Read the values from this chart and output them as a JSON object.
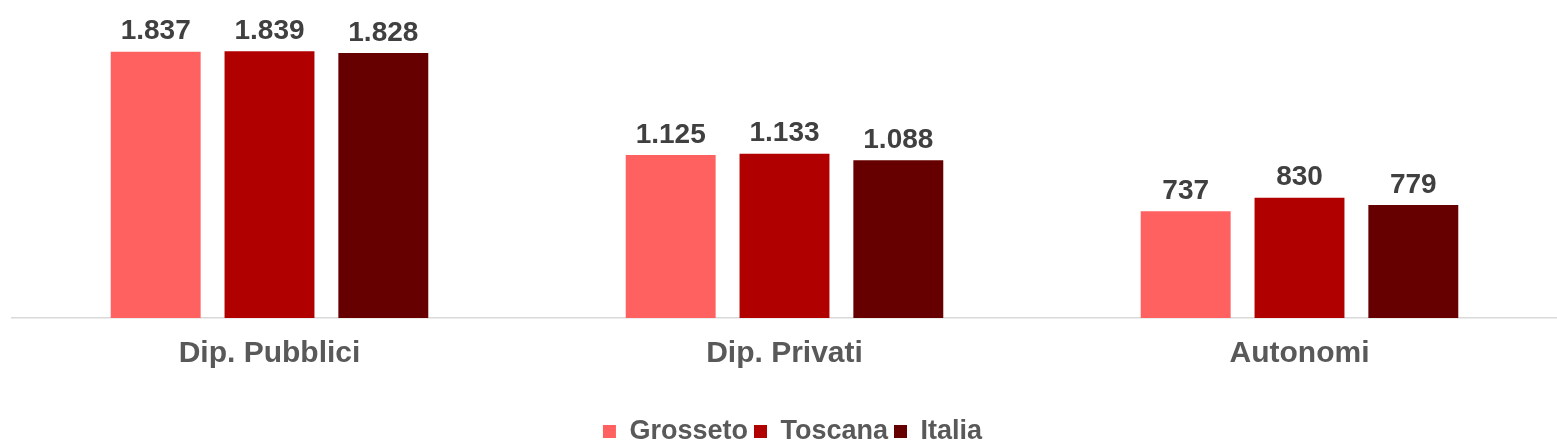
{
  "chart_data": {
    "type": "bar",
    "categories": [
      "Dip. Pubblici",
      "Dip. Privati",
      "Autonomi"
    ],
    "series": [
      {
        "name": "Grosseto",
        "color": "#ff6161",
        "values": [
          1837,
          1125,
          737
        ],
        "value_labels": [
          "1.837",
          "1.125",
          "737"
        ]
      },
      {
        "name": "Toscana",
        "color": "#b00000",
        "values": [
          1839,
          1133,
          830
        ],
        "value_labels": [
          "1.839",
          "1.133",
          "830"
        ]
      },
      {
        "name": "Italia",
        "color": "#660000",
        "values": [
          1828,
          1088,
          779
        ],
        "value_labels": [
          "1.828",
          "1.088",
          "779"
        ]
      }
    ],
    "tick_labels": "x",
    "grid": false,
    "legend": "bottom"
  }
}
